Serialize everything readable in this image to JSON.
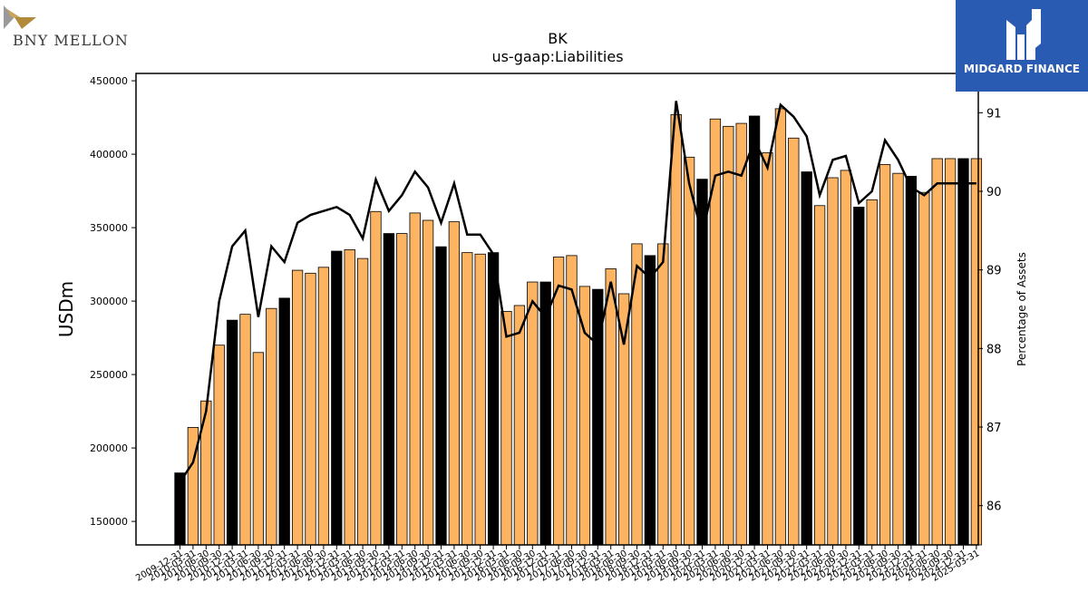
{
  "branding": {
    "left_logo": "BNY MELLON",
    "right_logo": "MIDGARD FINANCE",
    "right_logo_bg": "#2a5bb3"
  },
  "chart_data": {
    "type": "bar",
    "title": "BK",
    "subtitle": "us-gaap:Liabilities",
    "ylabel": "USDm",
    "y2label": "Percentage of Assets",
    "ylim": [
      134000,
      455000
    ],
    "y2lim": [
      85.5,
      91.5
    ],
    "yticks": [
      150000,
      200000,
      250000,
      300000,
      350000,
      400000,
      450000
    ],
    "y2ticks": [
      86,
      87,
      88,
      89,
      90,
      91
    ],
    "grid": false,
    "colors": {
      "annual_bar": "#000000",
      "quarterly_bar": "#fdb462",
      "line": "#000000"
    },
    "categories": [
      "2009-12-31",
      "2010-03-31",
      "2010-06-30",
      "2010-09-30",
      "2010-12-31",
      "2011-03-31",
      "2011-06-30",
      "2011-09-30",
      "2011-12-31",
      "2012-03-31",
      "2012-06-30",
      "2012-09-30",
      "2012-12-31",
      "2013-03-31",
      "2013-06-30",
      "2013-09-30",
      "2013-12-31",
      "2014-03-31",
      "2014-06-30",
      "2014-09-30",
      "2014-12-31",
      "2015-03-31",
      "2015-06-30",
      "2015-09-30",
      "2015-12-31",
      "2016-03-31",
      "2016-06-30",
      "2016-09-30",
      "2016-12-31",
      "2017-03-31",
      "2017-06-30",
      "2017-09-30",
      "2017-12-31",
      "2018-03-31",
      "2018-06-30",
      "2018-09-30",
      "2018-12-31",
      "2019-03-31",
      "2019-06-30",
      "2019-09-30",
      "2019-12-31",
      "2020-03-31",
      "2020-06-30",
      "2020-09-30",
      "2020-12-31",
      "2021-03-31",
      "2021-06-30",
      "2021-09-30",
      "2021-12-31",
      "2022-03-31",
      "2022-06-30",
      "2022-09-30",
      "2022-12-31",
      "2023-03-31",
      "2023-06-30",
      "2023-09-30",
      "2023-12-31",
      "2024-03-31",
      "2024-06-30",
      "2024-09-30",
      "2024-12-31",
      "2025-03-31"
    ],
    "xtick_labels": [
      "2009-12-31",
      "2010-03-31",
      "2010-06-30",
      "2010-09-30",
      "2010-12-31",
      "2011-03-31",
      "2011-06-30",
      "2011-09-30",
      "2011-12-31",
      "2012-03-31",
      "2012-06-30",
      "2012-09-30",
      "2012-12-31",
      "2013-03-31",
      "2013-06-30",
      "2013-09-30",
      "2013-12-31",
      "2014-03-31",
      "2014-06-30",
      "2014-09-30",
      "2014-12-31",
      "2015-03-31",
      "2015-06-30",
      "2015-09-30",
      "2015-12-31",
      "2016-03-31",
      "2016-06-30",
      "2016-09-30",
      "2016-12-31",
      "2017-03-31",
      "2017-06-30",
      "2017-09-30",
      "2017-12-31",
      "2018-03-31",
      "2018-06-30",
      "2018-09-30",
      "2018-12-31",
      "2019-03-31",
      "2019-06-30",
      "2019-09-30",
      "2019-12-31",
      "2020-03-31",
      "2020-06-30",
      "2020-09-30",
      "2020-12-31",
      "2021-03-31",
      "2021-06-30",
      "2021-09-30",
      "2021-12-31",
      "2022-03-31",
      "2022-06-30",
      "2022-09-30",
      "2022-12-31",
      "2023-03-31",
      "2023-06-30",
      "2023-09-30",
      "2023-12-31",
      "2024-03-31",
      "2024-06-30",
      "2024-09-30",
      "2024-12-31",
      "2025-03-31"
    ],
    "annual": [
      true,
      false,
      false,
      false,
      true,
      false,
      false,
      false,
      true,
      false,
      false,
      false,
      true,
      false,
      false,
      false,
      true,
      false,
      false,
      false,
      true,
      false,
      false,
      false,
      true,
      false,
      false,
      false,
      true,
      false,
      false,
      false,
      true,
      false,
      false,
      false,
      true,
      false,
      false,
      false,
      true,
      false,
      false,
      false,
      true,
      false,
      false,
      false,
      true,
      false,
      false,
      false,
      true,
      false,
      false,
      false,
      true,
      false,
      false,
      false,
      true,
      false
    ],
    "series": [
      {
        "values": [
          183000,
          214000,
          232000,
          270000,
          287000,
          291000,
          265000,
          295000,
          302000,
          321000,
          319000,
          323000,
          334000,
          335000,
          329000,
          361000,
          346000,
          346000,
          360000,
          355000,
          337000,
          354000,
          333000,
          332000,
          333000,
          293000,
          297000,
          313000,
          313000,
          330000,
          331000,
          310000,
          308000,
          322000,
          305000,
          339000,
          331000,
          339000,
          427000,
          398000,
          383000,
          424000,
          419000,
          421000,
          426000,
          401000,
          431000,
          411000,
          388000,
          365000,
          384000,
          389000,
          364000,
          369000,
          393000,
          387000,
          385000,
          374000,
          397000,
          397000,
          397000,
          397000
        ]
      },
      {
        "values": [
          86.3,
          86.55,
          87.2,
          88.6,
          89.3,
          89.5,
          88.4,
          89.3,
          89.1,
          89.6,
          89.7,
          89.75,
          89.8,
          89.7,
          89.4,
          90.15,
          89.75,
          89.95,
          90.25,
          90.05,
          89.6,
          90.1,
          89.45,
          89.45,
          89.2,
          88.15,
          88.2,
          88.6,
          88.4,
          88.8,
          88.75,
          88.2,
          88.05,
          88.85,
          88.05,
          89.05,
          88.9,
          89.1,
          91.15,
          90.1,
          89.45,
          90.2,
          90.25,
          90.2,
          90.65,
          90.3,
          91.1,
          90.95,
          90.7,
          89.95,
          90.4,
          90.45,
          89.85,
          90.0,
          90.65,
          90.4,
          90.05,
          89.95,
          90.1,
          90.1,
          90.1,
          90.1
        ]
      }
    ]
  }
}
